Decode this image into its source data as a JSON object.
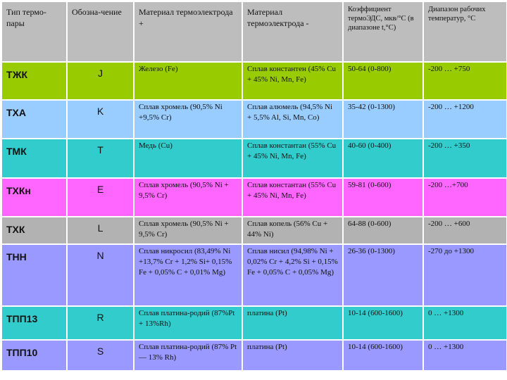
{
  "colors": {
    "header": "#bdbdbd",
    "row_border": "#ffffff",
    "rows": [
      "#99cc00",
      "#99ccff",
      "#33cccc",
      "#ff66ff",
      "#b2b2b2",
      "#9999ff",
      "#33cccc",
      "#9999ff"
    ]
  },
  "header": {
    "type": "Тип термо-пары",
    "designation": "Обозна-чение",
    "material_plus": "Материал термоэлектрода +",
    "material_minus": "Материал термоэлектрода -",
    "coefficient": "Коэффициент термоЭДС, мкв/°С (в диапазоне t,°С)",
    "range": "Диапазон рабочих температур, °С"
  },
  "rows": [
    {
      "type": "ТЖК",
      "designation": "J",
      "plus": "Железо (Fe)",
      "minus": "Сплав константен (45% Cu + 45% Ni, Mn, Fe)",
      "coefficient": "50-64 (0-800)",
      "range": "-200 … +750"
    },
    {
      "type": "ТХА",
      "designation": "K",
      "plus": "Сплав хромель (90,5% Ni +9,5% Cr)",
      "minus": "Сплав алюмель (94,5% Ni + 5,5% Al, Si, Mn, Co)",
      "coefficient": "35-42 (0-1300)",
      "range": "-200 … +1200"
    },
    {
      "type": "ТМК",
      "designation": "T",
      "plus": "Медь (Cu)",
      "minus": "Сплав константан (55% Cu + 45% Ni, Mn, Fe)",
      "coefficient": "40-60 (0-400)",
      "range": "-200 … +350"
    },
    {
      "type": "ТХКн",
      "designation": "E",
      "plus": "Сплав хромель (90,5% Ni + 9,5% Cr)",
      "minus": "Сплав константан (55% Cu + 45% Ni, Mn, Fe)",
      "coefficient": "59-81 (0-600)",
      "range": "-200 …+700"
    },
    {
      "type": "ТХК",
      "designation": "L",
      "plus": "Сплав хромель (90,5% Ni + 9,5% Cr)",
      "minus": "Сплав копель (56% Cu + 44% Ni)",
      "coefficient": "64-88 (0-600)",
      "range": "-200 … +600"
    },
    {
      "type": "ТНН",
      "designation": "N",
      "plus": "Сплав никросил (83,49% Ni +13,7% Cr + 1,2% Si+ 0,15% Fe + 0,05% C + 0,01% Mg)",
      "minus": "Сплав нисил (94,98% Ni + 0,02% Cr + 4,2% Si + 0,15% Fe + 0,05% C + 0,05% Mg)",
      "coefficient": "26-36 (0-1300)",
      "range": "-270 до +1300"
    },
    {
      "type": "ТПП13",
      "designation": "R",
      "plus": "Сплав платина-родий (87%Pt + 13%Rh)",
      "minus": "платина (Pt)",
      "coefficient": "10-14 (600-1600)",
      "range": "0 … +1300"
    },
    {
      "type": "ТПП10",
      "designation": "S",
      "plus": "Сплав платина-родий (87% Pt — 13% Rh)",
      "minus": "платина (Pt)",
      "coefficient": "10-14 (600-1600)",
      "range": "0 … +1300"
    }
  ]
}
